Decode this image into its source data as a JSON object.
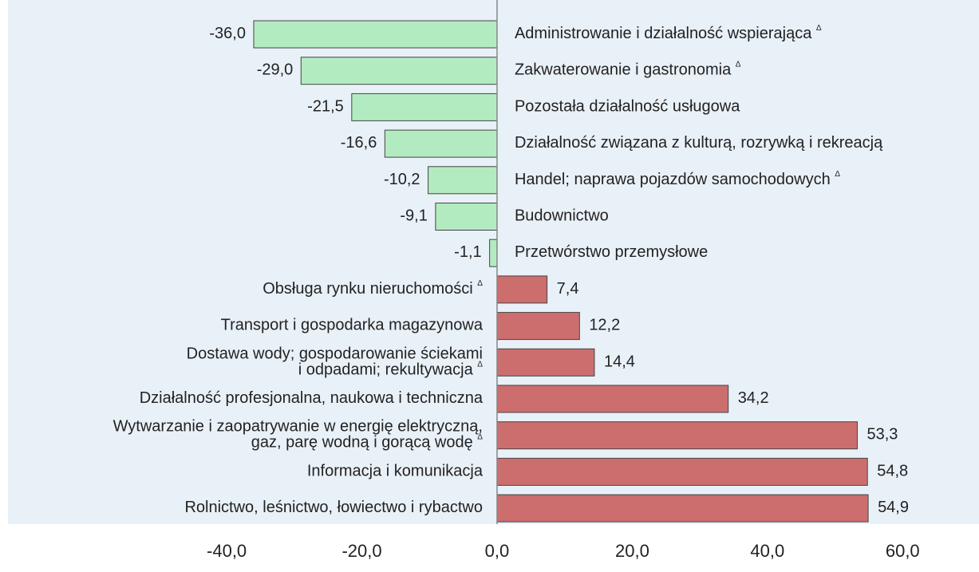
{
  "chart_data": {
    "type": "barh",
    "categories": [
      "Administrowanie i działalność wspierająca Δ",
      "Zakwaterowanie i gastronomia Δ",
      "Pozostała działalność usługowa",
      "Działalność związana z kulturą, rozrywką i rekreacją",
      "Handel; naprawa pojazdów samochodowych Δ",
      "Budownictwo",
      "Przetwórstwo przemysłowe",
      "Obsługa rynku nieruchomości Δ",
      "Transport i gospodarka magazynowa",
      "Dostawa wody; gospodarowanie ściekami\ni odpadami; rekultywacja Δ",
      "Działalność profesjonalna, naukowa i techniczna",
      "Wytwarzanie i zaopatrywanie w energię elektryczną,\ngaz, parę wodną i gorącą wodę Δ",
      "Informacja i komunikacja",
      "Rolnictwo, leśnictwo, łowiectwo i rybactwo"
    ],
    "values": [
      -36.0,
      -29.0,
      -21.5,
      -16.6,
      -10.2,
      -9.1,
      -1.1,
      7.4,
      12.2,
      14.4,
      34.2,
      53.3,
      54.8,
      54.9
    ],
    "value_labels": [
      "-36,0",
      "-29,0",
      "-21,5",
      "-16,6",
      "-10,2",
      "-9,1",
      "-1,1",
      "7,4",
      "12,2",
      "14,4",
      "34,2",
      "53,3",
      "54,8",
      "54,9"
    ],
    "color_negative": "#b3ebc0",
    "color_positive": "#cc6e6e",
    "xlim": [
      -72,
      71.3
    ],
    "xticks": [
      {
        "value": -40,
        "label": "-40,0"
      },
      {
        "value": -20,
        "label": "-20,0"
      },
      {
        "value": 0,
        "label": "0,0"
      },
      {
        "value": 20,
        "label": "20,0"
      },
      {
        "value": 40,
        "label": "40,0"
      },
      {
        "value": 60,
        "label": "60,0"
      }
    ],
    "grid": false
  }
}
